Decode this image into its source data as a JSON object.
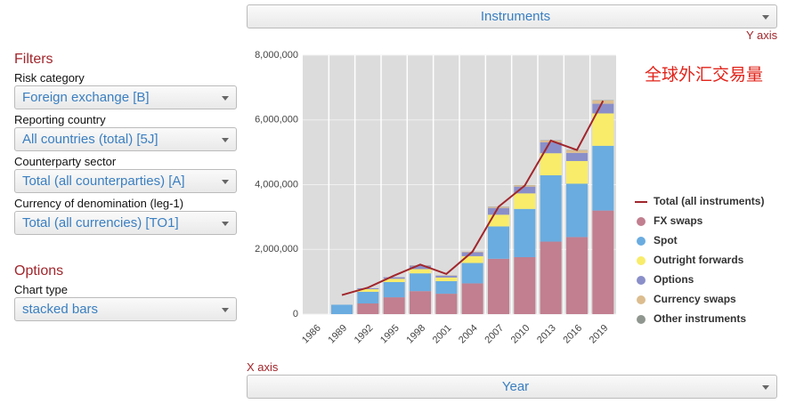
{
  "header": {
    "dropdown": "Instruments",
    "y_axis_label": "Y axis"
  },
  "filters": {
    "title": "Filters",
    "fields": [
      {
        "label": "Risk category",
        "value": "Foreign exchange [B]"
      },
      {
        "label": "Reporting country",
        "value": "All countries (total) [5J]"
      },
      {
        "label": "Counterparty sector",
        "value": "Total (all counterparties) [A]"
      },
      {
        "label": "Currency of denomination (leg-1)",
        "value": "Total (all currencies) [TO1]"
      }
    ]
  },
  "options": {
    "title": "Options",
    "fields": [
      {
        "label": "Chart type",
        "value": "stacked bars"
      }
    ]
  },
  "footer": {
    "x_axis_label": "X axis",
    "dropdown": "Year"
  },
  "chart_data": {
    "type": "bar",
    "stacked": true,
    "title": "全球外汇交易量",
    "categories": [
      "1986",
      "1989",
      "1992",
      "1995",
      "1998",
      "2001",
      "2004",
      "2007",
      "2010",
      "2013",
      "2016",
      "2019"
    ],
    "series": [
      {
        "name": "Total (all instruments)",
        "kind": "line",
        "color": "#a1262c",
        "values": [
          null,
          590000,
          820000,
          1190000,
          1530000,
          1240000,
          1930000,
          3320000,
          3970000,
          5360000,
          5070000,
          6590000
        ]
      },
      {
        "name": "FX swaps",
        "color": "#c17f8f",
        "values": [
          null,
          null,
          330000,
          520000,
          710000,
          630000,
          950000,
          1710000,
          1760000,
          2240000,
          2380000,
          3200000
        ]
      },
      {
        "name": "Spot",
        "color": "#6aace0",
        "values": [
          null,
          290000,
          360000,
          470000,
          550000,
          390000,
          630000,
          1000000,
          1490000,
          2050000,
          1650000,
          2000000
        ]
      },
      {
        "name": "Outright forwards",
        "color": "#f8ec6a",
        "values": [
          null,
          null,
          80000,
          100000,
          130000,
          110000,
          210000,
          360000,
          480000,
          680000,
          700000,
          1000000
        ]
      },
      {
        "name": "Options",
        "color": "#8a8fc9",
        "values": [
          null,
          null,
          30000,
          50000,
          110000,
          60000,
          120000,
          210000,
          210000,
          340000,
          250000,
          300000
        ]
      },
      {
        "name": "Currency swaps",
        "color": "#dcbd8f",
        "values": [
          null,
          null,
          null,
          null,
          10000,
          10000,
          20000,
          30000,
          40000,
          50000,
          80000,
          100000
        ]
      },
      {
        "name": "Other instruments",
        "color": "#8f968f",
        "values": [
          null,
          null,
          null,
          null,
          null,
          null,
          null,
          10000,
          10000,
          10000,
          10000,
          10000
        ]
      }
    ],
    "ylim": [
      0,
      8000000
    ],
    "yticks": [
      0,
      {
        "value": 2000000,
        "label": "2,000,000"
      },
      {
        "value": 4000000,
        "label": "4,000,000"
      },
      {
        "value": 6000000,
        "label": "6,000,000"
      },
      {
        "value": 8000000,
        "label": "8,000,000"
      }
    ],
    "grid": true,
    "legend": "right"
  }
}
